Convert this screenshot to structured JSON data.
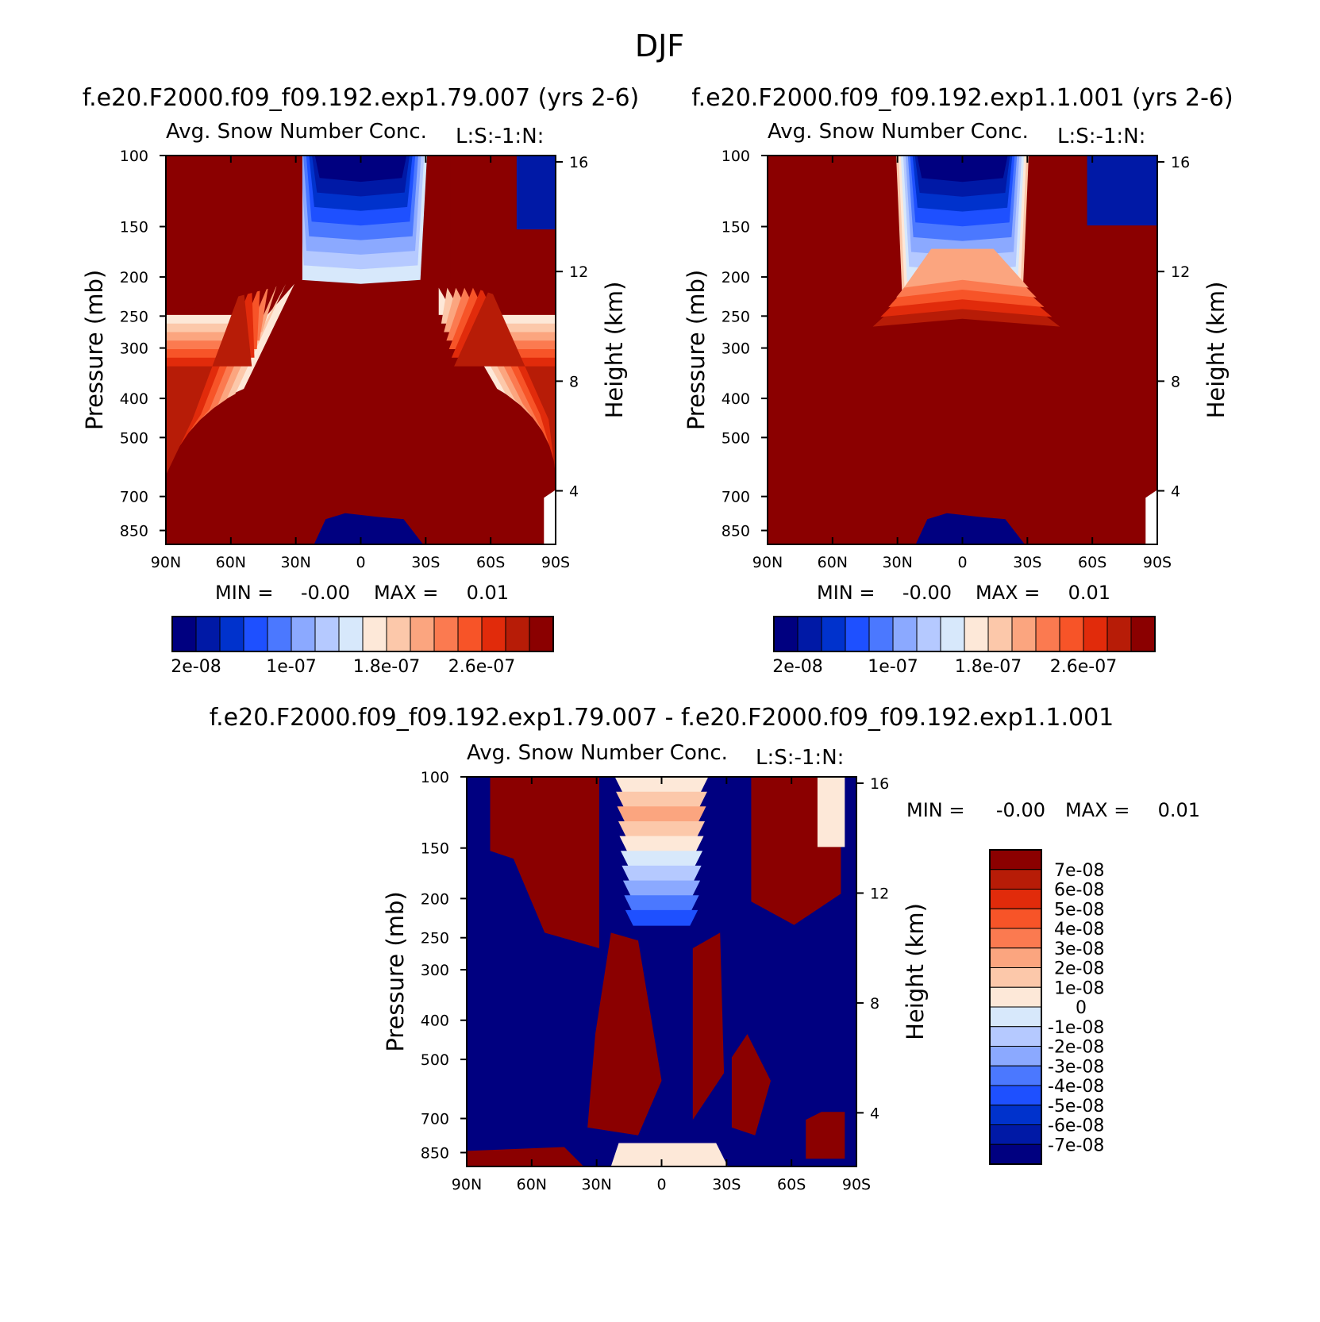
{
  "figure": {
    "title": "DJF"
  },
  "colors": {
    "diverging": [
      "#000080",
      "#0019a6",
      "#0032cc",
      "#1e50ff",
      "#4b78ff",
      "#8ba9ff",
      "#b5c9ff",
      "#d7e8fb",
      "#fde8d8",
      "#fcc8aa",
      "#fba57f",
      "#fb7a50",
      "#f75428",
      "#e12b0b",
      "#b71c07",
      "#8b0000"
    ],
    "axis": "#000000"
  },
  "chart_data": [
    {
      "type": "heatmap",
      "panel": "top-left",
      "case_title": "f.e20.F2000.f09_f09.192.exp1.79.007 (yrs 2-6)",
      "title": "Avg. Snow Number Conc.",
      "units_label": "L:S:-1:N:",
      "ylabel": "Pressure (mb)",
      "ylabel_right": "Height (km)",
      "x_ticks": [
        "90N",
        "60N",
        "30N",
        "0",
        "30S",
        "60S",
        "90S"
      ],
      "y_ticks": [
        "100",
        "150",
        "200",
        "250",
        "300",
        "400",
        "500",
        "700",
        "850"
      ],
      "y_right_ticks": [
        "16",
        "12",
        "8",
        "4"
      ],
      "min_max_text": {
        "min_label": "MIN =",
        "min": "-0.00",
        "max_label": "MAX =",
        "max": "0.01"
      },
      "colorbar": {
        "orientation": "horizontal",
        "labels": [
          "2e-08",
          "1e-07",
          "1.8e-07",
          "2.6e-07"
        ]
      }
    },
    {
      "type": "heatmap",
      "panel": "top-right",
      "case_title": "f.e20.F2000.f09_f09.192.exp1.1.001 (yrs 2-6)",
      "title": "Avg. Snow Number Conc.",
      "units_label": "L:S:-1:N:",
      "ylabel": "Pressure (mb)",
      "ylabel_right": "Height (km)",
      "x_ticks": [
        "90N",
        "60N",
        "30N",
        "0",
        "30S",
        "60S",
        "90S"
      ],
      "y_ticks": [
        "100",
        "150",
        "200",
        "250",
        "300",
        "400",
        "500",
        "700",
        "850"
      ],
      "y_right_ticks": [
        "16",
        "12",
        "8",
        "4"
      ],
      "min_max_text": {
        "min_label": "MIN =",
        "min": "-0.00",
        "max_label": "MAX =",
        "max": "0.01"
      },
      "colorbar": {
        "orientation": "horizontal",
        "labels": [
          "2e-08",
          "1e-07",
          "1.8e-07",
          "2.6e-07"
        ]
      }
    },
    {
      "type": "heatmap",
      "panel": "bottom",
      "case_title": "f.e20.F2000.f09_f09.192.exp1.79.007 - f.e20.F2000.f09_f09.192.exp1.1.001",
      "title": "Avg. Snow Number Conc.",
      "units_label": "L:S:-1:N:",
      "ylabel": "Pressure (mb)",
      "ylabel_right": "Height (km)",
      "x_ticks": [
        "90N",
        "60N",
        "30N",
        "0",
        "30S",
        "60S",
        "90S"
      ],
      "y_ticks": [
        "100",
        "150",
        "200",
        "250",
        "300",
        "400",
        "500",
        "700",
        "850"
      ],
      "y_right_ticks": [
        "16",
        "12",
        "8",
        "4"
      ],
      "min_max_text": {
        "min_label": "MIN =",
        "min": "-0.00",
        "max_label": "MAX =",
        "max": "0.01"
      },
      "colorbar": {
        "orientation": "vertical",
        "labels": [
          "7e-08",
          "6e-08",
          "5e-08",
          "4e-08",
          "3e-08",
          "2e-08",
          "1e-08",
          "0",
          "-1e-08",
          "-2e-08",
          "-3e-08",
          "-4e-08",
          "-5e-08",
          "-6e-08",
          "-7e-08"
        ]
      }
    }
  ]
}
